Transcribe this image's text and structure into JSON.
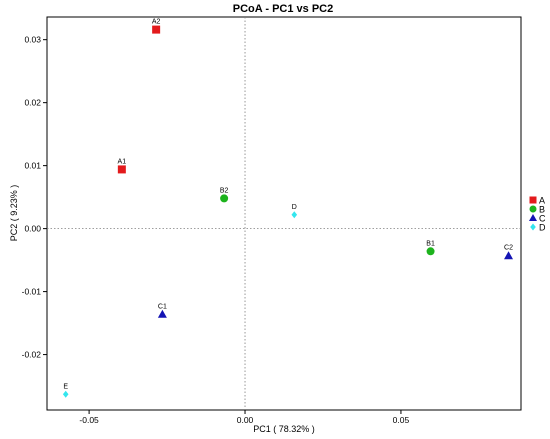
{
  "chart_data": {
    "type": "scatter",
    "title": "PCoA - PC1 vs PC2",
    "xlabel": "PC1 ( 78.32% )",
    "ylabel": "PC2 ( 9.23% )",
    "xlim": [
      -0.0635,
      0.0885
    ],
    "ylim": [
      -0.0288,
      0.0336
    ],
    "xticks": [
      -0.05,
      0.0,
      0.05
    ],
    "xtick_labels": [
      "-0.05",
      "0.00",
      "0.05"
    ],
    "yticks": [
      -0.02,
      -0.01,
      0.0,
      0.01,
      0.02,
      0.03
    ],
    "ytick_labels": [
      "-0.02",
      "-0.01",
      "0.00",
      "0.01",
      "0.02",
      "0.03"
    ],
    "reference_lines": {
      "x": 0,
      "y": 0,
      "style": "dotted"
    },
    "grid": false,
    "legend_position": "right",
    "groups": [
      {
        "name": "A",
        "color": "#e31a1c",
        "marker": "square"
      },
      {
        "name": "B",
        "color": "#1db31d",
        "marker": "circle"
      },
      {
        "name": "C",
        "color": "#1414b4",
        "marker": "triangle"
      },
      {
        "name": "D",
        "color": "#33e6ee",
        "marker": "diamond"
      }
    ],
    "points": [
      {
        "label": "A2",
        "group": "A",
        "x": -0.0285,
        "y": 0.0316
      },
      {
        "label": "A1",
        "group": "A",
        "x": -0.0395,
        "y": 0.0094
      },
      {
        "label": "B2",
        "group": "B",
        "x": -0.0067,
        "y": 0.0048
      },
      {
        "label": "B1",
        "group": "B",
        "x": 0.0595,
        "y": -0.0036
      },
      {
        "label": "D",
        "group": "D",
        "x": 0.0158,
        "y": 0.0022
      },
      {
        "label": "C1",
        "group": "C",
        "x": -0.0265,
        "y": -0.0136
      },
      {
        "label": "C2",
        "group": "C",
        "x": 0.0845,
        "y": -0.0043
      },
      {
        "label": "E",
        "group": "D",
        "x": -0.0575,
        "y": -0.0263
      }
    ]
  }
}
